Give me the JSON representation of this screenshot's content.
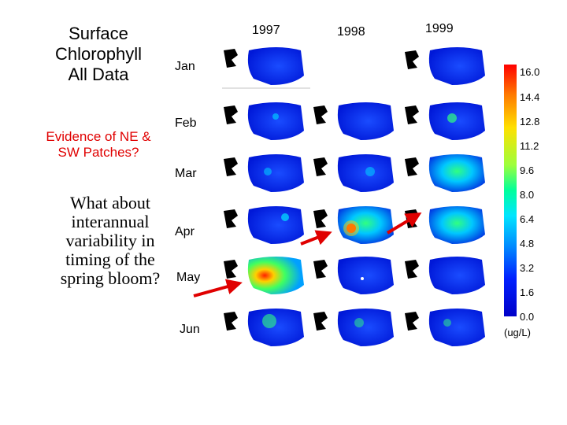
{
  "slide": {
    "title": "Surface\nChlorophyll\nAll Data",
    "question": "Evidence of NE &\nSW Patches?",
    "prompt": "What about\ninterannual\nvariability in\ntiming of the\nspring bloom?"
  },
  "grid": {
    "years": [
      "1997",
      "1998",
      "1999"
    ],
    "months": [
      "Jan",
      "Feb",
      "Mar",
      "Apr",
      "May",
      "Jun"
    ]
  },
  "colorbar": {
    "labels": [
      "16.0",
      "14.4",
      "12.8",
      "11.2",
      "9.6",
      "8.0",
      "6.4",
      "4.8",
      "3.2",
      "1.6",
      "0.0"
    ],
    "unit": "(ug/L)",
    "colors": [
      "#ff0000",
      "#ff7a00",
      "#ffe000",
      "#9cff3c",
      "#00ff9c",
      "#00e5ff",
      "#008cff",
      "#0020ff",
      "#0000c8"
    ]
  }
}
